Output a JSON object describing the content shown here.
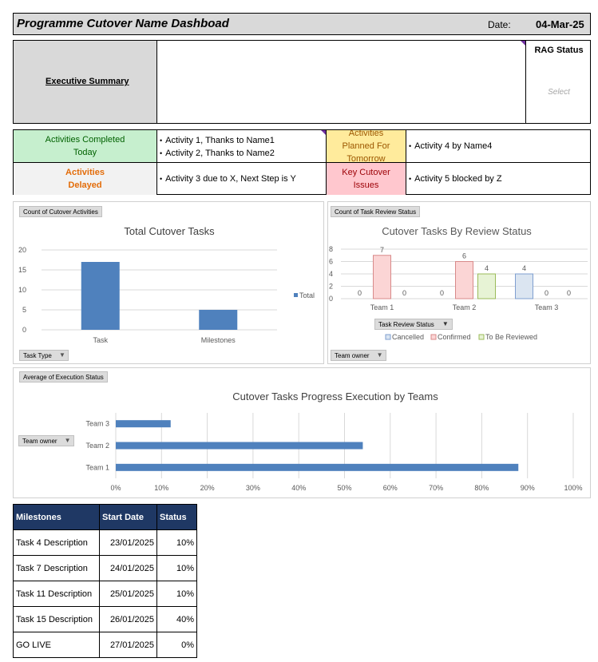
{
  "header": {
    "title": "Programme Cutover Name Dashboad",
    "date_label": "Date:",
    "date_value": "04-Mar-25"
  },
  "exec_summary": {
    "label": "Executive Summary",
    "rag_title": "RAG Status",
    "rag_value": "Select"
  },
  "activities": {
    "completed_label": "Activities Completed Today",
    "completed_items": [
      "Activity 1, Thanks to Name1",
      "Activity 2, Thanks to Name2"
    ],
    "planned_label": "Activities Planned For Tomorrow",
    "planned_items": [
      "Activity 4 by Name4"
    ],
    "delayed_label": "Activities Delayed",
    "delayed_items": [
      "Activity 3 due to X, Next Step is Y"
    ],
    "issues_label": "Key Cutover Issues",
    "issues_items": [
      "Activity 5 blocked by Z"
    ]
  },
  "colors": {
    "completed_bg": "#c6efce",
    "completed_text": "#006100",
    "planned_bg": "#ffeb9c",
    "planned_text": "#9c5700",
    "delayed_bg": "#f2f2f2",
    "delayed_text": "#e36c09",
    "issues_bg": "#ffc7ce",
    "issues_text": "#9c0006",
    "bar_blue": "#4f81bd",
    "header_navy": "#1f3864"
  },
  "chart1": {
    "field_value": "Count of Cutover Activities",
    "filter_label": "Task Type",
    "chart_data": {
      "type": "bar",
      "title": "Total Cutover Tasks",
      "categories": [
        "Task",
        "Milestones"
      ],
      "series": [
        {
          "name": "Total",
          "values": [
            17,
            5
          ]
        }
      ],
      "ylim": [
        0,
        20
      ],
      "yticks": [
        0,
        5,
        10,
        15,
        20
      ],
      "legend": "right"
    }
  },
  "chart2": {
    "field_value": "Count of Task Review Status",
    "filter_label": "Team owner",
    "series_field": "Task Review Status",
    "chart_data": {
      "type": "bar",
      "title": "Cutover Tasks By Review Status",
      "categories": [
        "Team 1",
        "Team 2",
        "Team 3"
      ],
      "series": [
        {
          "name": "Cancelled",
          "values": [
            0,
            0,
            4
          ]
        },
        {
          "name": "Confirmed",
          "values": [
            7,
            6,
            0
          ]
        },
        {
          "name": "To Be Reviewed",
          "values": [
            0,
            4,
            0
          ]
        }
      ],
      "ylim": [
        0,
        8
      ],
      "yticks": [
        0,
        2,
        4,
        6,
        8
      ],
      "legend": "bottom"
    }
  },
  "chart3": {
    "field_value": "Average of Execution Status",
    "filter_label": "Team owner",
    "chart_data": {
      "type": "bar",
      "orientation": "horizontal",
      "title": "Cutover Tasks Progress Execution by Teams",
      "categories": [
        "Team 1",
        "Team 2",
        "Team 3"
      ],
      "values": [
        0.88,
        0.54,
        0.12
      ],
      "xlim": [
        0,
        1
      ],
      "xticks": [
        "0%",
        "10%",
        "20%",
        "30%",
        "40%",
        "50%",
        "60%",
        "70%",
        "80%",
        "90%",
        "100%"
      ]
    }
  },
  "milestones": {
    "headers": [
      "Milestones",
      "Start Date",
      "Status"
    ],
    "rows": [
      [
        "Task 4 Description",
        "23/01/2025",
        "10%"
      ],
      [
        "Task 7 Description",
        "24/01/2025",
        "10%"
      ],
      [
        "Task 11 Description",
        "25/01/2025",
        "10%"
      ],
      [
        "Task 15 Description",
        "26/01/2025",
        "40%"
      ],
      [
        "GO LIVE",
        "27/01/2025",
        "0%"
      ]
    ]
  }
}
